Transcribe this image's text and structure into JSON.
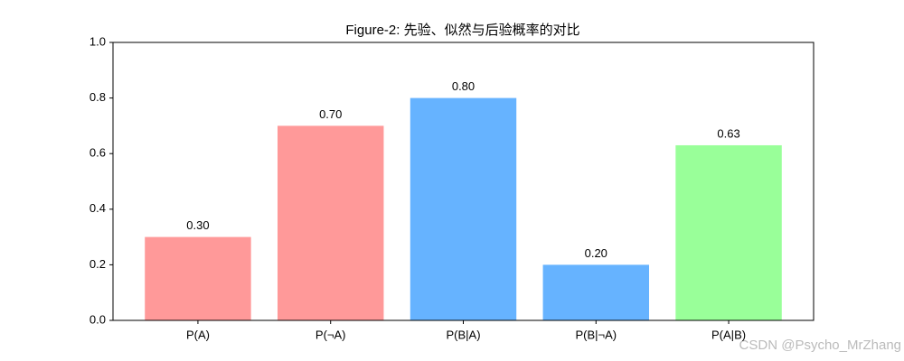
{
  "chart_data": {
    "type": "bar",
    "title": "Figure-2: 先验、似然与后验概率的对比",
    "categories": [
      "P(A)",
      "P(¬A)",
      "P(B|A)",
      "P(B|¬A)",
      "P(A|B)"
    ],
    "values": [
      0.3,
      0.7,
      0.8,
      0.2,
      0.63
    ],
    "value_labels": [
      "0.30",
      "0.70",
      "0.80",
      "0.20",
      "0.63"
    ],
    "colors": [
      "#ff9999",
      "#ff9999",
      "#66b3ff",
      "#66b3ff",
      "#99ff99"
    ],
    "ylim": [
      0,
      1
    ],
    "yticks": [
      {
        "value": 0,
        "label": "0.0"
      },
      {
        "value": 0.2,
        "label": "0.2"
      },
      {
        "value": 0.4,
        "label": "0.4"
      },
      {
        "value": 0.6,
        "label": "0.6"
      },
      {
        "value": 0.8,
        "label": "0.8"
      },
      {
        "value": 1,
        "label": "1.0"
      }
    ],
    "grid": false
  },
  "watermark": "CSDN @Psycho_MrZhang"
}
